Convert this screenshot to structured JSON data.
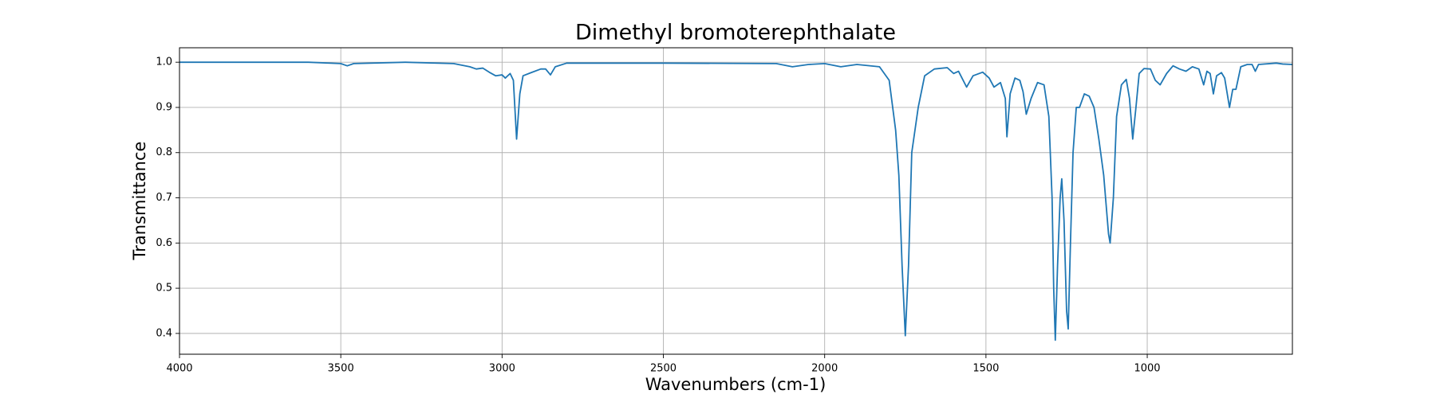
{
  "chart_data": {
    "type": "line",
    "title": "Dimethyl bromoterephthalate",
    "xlabel": "Wavenumbers (cm-1)",
    "ylabel": "Transmittance",
    "x": [
      4000,
      3600,
      3500,
      3480,
      3460,
      3300,
      3150,
      3100,
      3080,
      3060,
      3040,
      3020,
      3000,
      2990,
      2975,
      2965,
      2955,
      2945,
      2935,
      2910,
      2880,
      2865,
      2850,
      2835,
      2800,
      2500,
      2150,
      2100,
      2050,
      2000,
      1950,
      1900,
      1830,
      1800,
      1780,
      1770,
      1760,
      1750,
      1740,
      1730,
      1710,
      1690,
      1660,
      1620,
      1600,
      1585,
      1560,
      1540,
      1510,
      1490,
      1475,
      1455,
      1440,
      1435,
      1425,
      1410,
      1395,
      1385,
      1375,
      1360,
      1340,
      1320,
      1305,
      1295,
      1290,
      1285,
      1278,
      1270,
      1265,
      1258,
      1250,
      1245,
      1238,
      1230,
      1220,
      1210,
      1195,
      1180,
      1165,
      1150,
      1135,
      1120,
      1115,
      1105,
      1095,
      1080,
      1065,
      1055,
      1045,
      1035,
      1025,
      1010,
      990,
      975,
      960,
      940,
      920,
      900,
      880,
      860,
      840,
      825,
      815,
      805,
      795,
      785,
      770,
      760,
      745,
      735,
      725,
      710,
      690,
      675,
      665,
      655,
      600,
      580,
      550
    ],
    "series": [
      {
        "color": "#1f77b4",
        "values": [
          1.0,
          1.0,
          0.997,
          0.992,
          0.997,
          1.0,
          0.997,
          0.99,
          0.985,
          0.987,
          0.978,
          0.97,
          0.972,
          0.965,
          0.975,
          0.96,
          0.83,
          0.93,
          0.97,
          0.977,
          0.985,
          0.985,
          0.972,
          0.99,
          0.998,
          0.998,
          0.997,
          0.99,
          0.995,
          0.997,
          0.99,
          0.995,
          0.99,
          0.96,
          0.85,
          0.75,
          0.55,
          0.395,
          0.55,
          0.8,
          0.9,
          0.97,
          0.985,
          0.988,
          0.975,
          0.98,
          0.945,
          0.97,
          0.978,
          0.965,
          0.945,
          0.955,
          0.92,
          0.835,
          0.93,
          0.965,
          0.96,
          0.935,
          0.885,
          0.92,
          0.955,
          0.95,
          0.88,
          0.7,
          0.5,
          0.385,
          0.55,
          0.7,
          0.742,
          0.65,
          0.45,
          0.41,
          0.6,
          0.8,
          0.9,
          0.9,
          0.93,
          0.925,
          0.9,
          0.83,
          0.75,
          0.62,
          0.6,
          0.7,
          0.88,
          0.95,
          0.962,
          0.92,
          0.83,
          0.9,
          0.975,
          0.986,
          0.985,
          0.96,
          0.95,
          0.975,
          0.992,
          0.985,
          0.98,
          0.99,
          0.985,
          0.95,
          0.98,
          0.975,
          0.93,
          0.97,
          0.977,
          0.965,
          0.9,
          0.94,
          0.94,
          0.99,
          0.995,
          0.995,
          0.98,
          0.995,
          0.998,
          0.996,
          0.995
        ]
      }
    ],
    "xlim": [
      4000,
      550
    ],
    "xticks": [
      4000,
      3500,
      3000,
      2500,
      2000,
      1500,
      1000
    ],
    "ylim": [
      0.354,
      1.032
    ],
    "yticks": [
      0.4,
      0.5,
      0.6,
      0.7,
      0.8,
      0.9,
      {
        "value": 1.0,
        "label": "1.0"
      }
    ],
    "grid": true
  }
}
